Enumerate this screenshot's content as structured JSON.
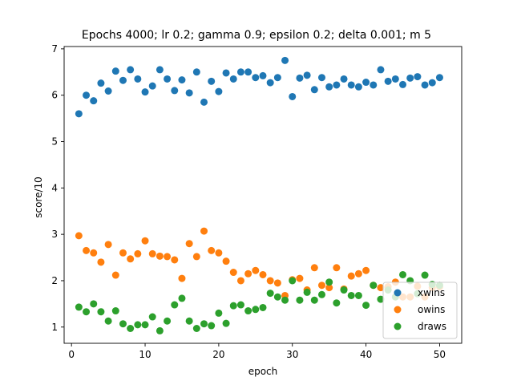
{
  "chart_data": {
    "type": "scatter",
    "title": "Epochs 4000; lr 0.2; gamma 0.9; epsilon 0.2; delta 0.001; m 5",
    "xlabel": "epoch",
    "ylabel": "score/10",
    "xlim": [
      -1,
      53
    ],
    "ylim": [
      0.65,
      7.05
    ],
    "xticks": [
      0,
      10,
      20,
      30,
      40,
      50
    ],
    "yticks": [
      1,
      2,
      3,
      4,
      5,
      6,
      7
    ],
    "legend_position": "lower right",
    "x": [
      1,
      2,
      3,
      4,
      5,
      6,
      7,
      8,
      9,
      10,
      11,
      12,
      13,
      14,
      15,
      16,
      17,
      18,
      19,
      20,
      21,
      22,
      23,
      24,
      25,
      26,
      27,
      28,
      29,
      30,
      31,
      32,
      33,
      34,
      35,
      36,
      37,
      38,
      39,
      40,
      41,
      42,
      43,
      44,
      45,
      46,
      47,
      48,
      49,
      50
    ],
    "series": [
      {
        "name": "xwins",
        "color": "#1f77b4",
        "values": [
          5.6,
          6.0,
          5.88,
          6.26,
          6.09,
          6.52,
          6.32,
          6.55,
          6.35,
          6.07,
          6.2,
          6.55,
          6.35,
          6.1,
          6.33,
          6.05,
          6.5,
          5.85,
          6.3,
          6.08,
          6.48,
          6.35,
          6.5,
          6.5,
          6.38,
          6.42,
          6.27,
          6.38,
          6.75,
          5.97,
          6.37,
          6.43,
          6.12,
          6.38,
          6.18,
          6.22,
          6.35,
          6.22,
          6.18,
          6.28,
          6.22,
          6.55,
          6.3,
          6.35,
          6.23,
          6.37,
          6.4,
          6.22,
          6.27,
          6.38
        ]
      },
      {
        "name": "owins",
        "color": "#ff7f0e",
        "values": [
          2.97,
          2.65,
          2.6,
          2.4,
          2.78,
          2.12,
          2.6,
          2.47,
          2.58,
          2.86,
          2.58,
          2.53,
          2.52,
          2.45,
          2.05,
          2.8,
          2.52,
          3.07,
          2.65,
          2.6,
          2.42,
          2.18,
          2.0,
          2.15,
          2.22,
          2.13,
          2.0,
          1.95,
          1.68,
          2.02,
          2.05,
          1.8,
          2.28,
          1.9,
          1.85,
          2.28,
          1.82,
          2.1,
          2.15,
          2.22,
          1.9,
          1.85,
          1.87,
          1.97,
          1.65,
          1.65,
          1.88,
          1.65,
          1.85,
          1.87
        ]
      },
      {
        "name": "draws",
        "color": "#2ca02c",
        "values": [
          1.43,
          1.33,
          1.5,
          1.33,
          1.13,
          1.35,
          1.07,
          0.97,
          1.05,
          1.05,
          1.22,
          0.92,
          1.13,
          1.48,
          1.62,
          1.13,
          0.97,
          1.07,
          1.03,
          1.3,
          1.08,
          1.46,
          1.48,
          1.35,
          1.38,
          1.42,
          1.73,
          1.65,
          1.58,
          2.0,
          1.58,
          1.75,
          1.58,
          1.7,
          1.97,
          1.52,
          1.8,
          1.68,
          1.68,
          1.47,
          1.9,
          1.6,
          1.8,
          1.65,
          2.13,
          2.0,
          1.72,
          2.12,
          1.92,
          1.9
        ]
      }
    ]
  }
}
